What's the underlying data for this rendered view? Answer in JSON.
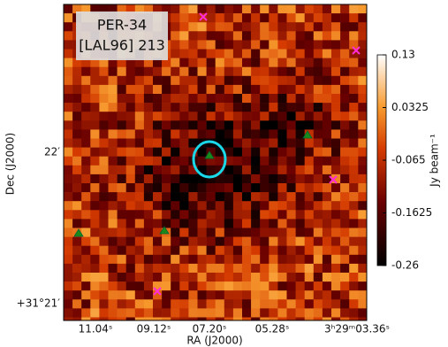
{
  "chart_data": {
    "type": "image",
    "title_lines": [
      "PER-34",
      "[LAL96] 213"
    ],
    "x_label": "RA (J2000)",
    "y_label": "Dec (J2000)",
    "x_tick_labels": [
      "11.04ˢ",
      "09.12ˢ",
      "07.20ˢ",
      "05.28ˢ",
      "3ʰ29ᵐ03.36ˢ"
    ],
    "y_tick_labels": [
      "22′",
      "+31°21′"
    ],
    "colorbar": {
      "label": "Jy beam⁻¹",
      "lim": [
        -0.26,
        0.13
      ],
      "ticks": [
        0.13,
        0.0325,
        -0.065,
        -0.1625,
        -0.26
      ]
    }
  }
}
